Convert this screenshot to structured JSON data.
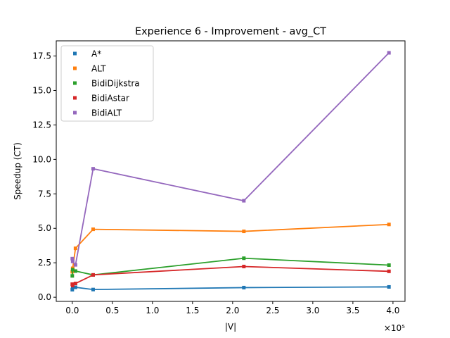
{
  "chart_data": {
    "type": "line",
    "title": "Experience 6 - Improvement - avg_CT",
    "xlabel": "|V|",
    "ylabel": "Speedup (CT)",
    "x_offset_label": "×10⁵",
    "xlim": [
      -0.2,
      4.15
    ],
    "ylim": [
      -0.3,
      18.6
    ],
    "xticks": [
      0.0,
      0.5,
      1.0,
      1.5,
      2.0,
      2.5,
      3.0,
      3.5,
      4.0
    ],
    "xtick_labels": [
      "0.0",
      "0.5",
      "1.0",
      "1.5",
      "2.0",
      "2.5",
      "3.0",
      "3.5",
      "4.0"
    ],
    "yticks": [
      0.0,
      2.5,
      5.0,
      7.5,
      10.0,
      12.5,
      15.0,
      17.5
    ],
    "ytick_labels": [
      "0.0",
      "2.5",
      "5.0",
      "7.5",
      "10.0",
      "12.5",
      "15.0",
      "17.5"
    ],
    "grid": false,
    "legend_position": "top-left",
    "x": [
      0.0,
      0.005,
      0.04,
      0.26,
      2.14,
      3.95
    ],
    "series": [
      {
        "name": "A*",
        "color": "#1f77b4",
        "values": [
          0.55,
          0.75,
          0.72,
          0.56,
          0.7,
          0.75
        ]
      },
      {
        "name": "ALT",
        "color": "#ff7f0e",
        "values": [
          1.85,
          2.1,
          3.55,
          4.93,
          4.78,
          5.28
        ]
      },
      {
        "name": "BidiDijkstra",
        "color": "#2ca02c",
        "values": [
          1.55,
          2.0,
          1.9,
          1.62,
          2.83,
          2.33
        ]
      },
      {
        "name": "BidiAstar",
        "color": "#d62728",
        "values": [
          0.95,
          0.85,
          1.0,
          1.62,
          2.23,
          1.88
        ]
      },
      {
        "name": "BidiALT",
        "color": "#9467bd",
        "values": [
          2.8,
          2.6,
          2.35,
          9.32,
          7.0,
          17.73
        ]
      }
    ]
  }
}
